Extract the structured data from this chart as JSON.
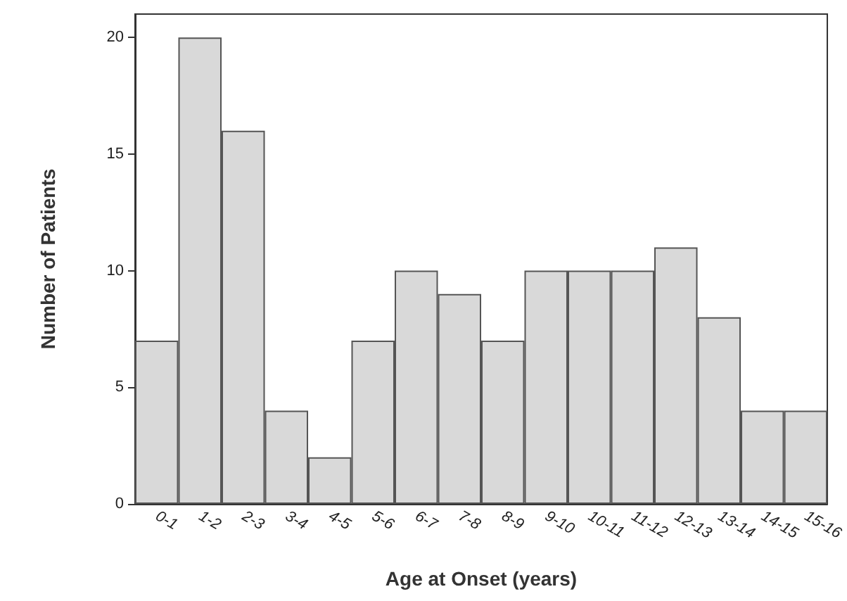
{
  "chart_data": {
    "type": "bar",
    "xlabel": "Age at Onset (years)",
    "ylabel": "Number of Patients",
    "categories": [
      "0-1",
      "1-2",
      "2-3",
      "3-4",
      "4-5",
      "5-6",
      "6-7",
      "7-8",
      "8-9",
      "9-10",
      "10-11",
      "11-12",
      "12-13",
      "13-14",
      "14-15",
      "15-16"
    ],
    "values": [
      7,
      20,
      16,
      4,
      2,
      7,
      10,
      9,
      7,
      10,
      10,
      10,
      11,
      8,
      4,
      4
    ],
    "color": "#d9d9d9",
    "ylim": [
      0,
      21
    ],
    "yticks": [
      0,
      5,
      10,
      15,
      20
    ],
    "grid": false
  }
}
